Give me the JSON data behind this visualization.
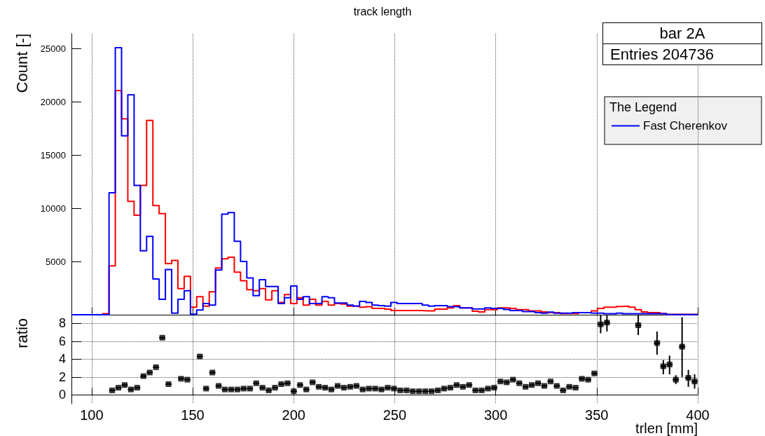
{
  "chart_data": [
    {
      "type": "histogram",
      "title": "track length",
      "ylabel": "Count [-]",
      "legend_title": "The Legend",
      "annotations": [
        "bar 2A",
        "Entries 204736"
      ],
      "bins": [
        90,
        93.1,
        96.2,
        99.3,
        102.4,
        105.5,
        108.6,
        111.7,
        114.8,
        117.9,
        121,
        124.1,
        127.2,
        130.3,
        133.4,
        136.5,
        139.6,
        142.7,
        145.8,
        148.9,
        152,
        155.1,
        158.2,
        161.3,
        164.4,
        167.5,
        170.6,
        173.7,
        176.8,
        179.9,
        183,
        186.1,
        189.2,
        192.3,
        195.4,
        198.5,
        201.6,
        204.7,
        207.8,
        210.9,
        214,
        217.1,
        220.2,
        223.3,
        226.4,
        229.5,
        232.6,
        235.7,
        238.8,
        241.9,
        245,
        248.1,
        251.2,
        254.3,
        257.4,
        260.5,
        263.6,
        266.7,
        269.8,
        272.9,
        276,
        279.1,
        282.2,
        285.3,
        288.4,
        291.5,
        294.6,
        297.7,
        300.8,
        303.9,
        307,
        310.1,
        313.2,
        316.3,
        319.4,
        322.5,
        325.6,
        328.7,
        331.8,
        334.9,
        338,
        341.1,
        344.2,
        347.3,
        350.4,
        353.5,
        356.6,
        359.7,
        362.8,
        365.9,
        369,
        372.1,
        375.2,
        378.3,
        381.4,
        384.5,
        387.6,
        390.7,
        393.8,
        396.9,
        400
      ],
      "series": [
        {
          "color": "#ff0000",
          "values": [
            0,
            0,
            0,
            0,
            0,
            100,
            4600,
            21050,
            18400,
            10650,
            9350,
            12150,
            18250,
            10250,
            9500,
            4800,
            5100,
            2450,
            3600,
            700,
            1700,
            800,
            2150,
            4400,
            5250,
            5400,
            4000,
            3200,
            2350,
            2250,
            2450,
            1400,
            2250,
            1150,
            1900,
            1050,
            1600,
            900,
            1450,
            900,
            1250,
            900,
            1050,
            1000,
            800,
            800,
            700,
            750,
            600,
            600,
            520,
            400,
            400,
            400,
            400,
            400,
            370,
            370,
            520,
            520,
            650,
            850,
            650,
            650,
            330,
            260,
            480,
            480,
            650,
            650,
            600,
            480,
            480,
            370,
            370,
            260,
            200,
            200,
            110,
            110,
            110,
            200,
            200,
            370,
            600,
            700,
            700,
            770,
            810,
            700,
            480,
            260,
            200,
            200,
            110,
            40,
            40,
            40,
            40,
            40
          ]
        },
        {
          "name": "Fast Cherenkov",
          "color": "#0000ff",
          "values": [
            0,
            0,
            0,
            0,
            0,
            0,
            11450,
            25090,
            16800,
            20650,
            12150,
            6000,
            7350,
            3350,
            1450,
            4250,
            150,
            1450,
            2250,
            50,
            450,
            1050,
            900,
            4200,
            9450,
            9600,
            6900,
            5000,
            3450,
            1800,
            3300,
            2650,
            2650,
            1050,
            1600,
            2700,
            1450,
            1700,
            1050,
            1050,
            1700,
            1600,
            1100,
            1100,
            900,
            800,
            1250,
            1150,
            900,
            850,
            800,
            1150,
            1050,
            1050,
            1050,
            1050,
            900,
            800,
            850,
            850,
            750,
            750,
            650,
            650,
            550,
            550,
            650,
            600,
            600,
            500,
            400,
            400,
            300,
            300,
            200,
            150,
            250,
            150,
            150,
            150,
            200,
            200,
            200,
            150,
            150,
            100,
            100,
            150,
            100,
            100,
            100,
            100,
            100,
            100,
            100,
            20,
            20,
            20,
            20,
            20
          ]
        }
      ],
      "xlim": [
        90,
        400
      ],
      "xticks": [
        100,
        150,
        200,
        250,
        300,
        350,
        400
      ],
      "ylim": [
        0,
        26400
      ],
      "yticks": [
        5000,
        10000,
        15000,
        20000,
        25000
      ],
      "tick_labels": "y",
      "grid": "x",
      "legend": "top right"
    },
    {
      "type": "scatter",
      "ylabel": "ratio",
      "xlabel": "trlen [mm]",
      "color": "#000000",
      "marker": "square",
      "x": [
        110.15,
        113.25,
        116.35,
        119.45,
        122.55,
        125.65,
        128.75,
        131.85,
        134.95,
        138.05,
        144.25,
        147.35,
        153.55,
        156.65,
        159.75,
        162.85,
        165.95,
        169.05,
        172.15,
        175.25,
        178.35,
        181.45,
        184.55,
        187.65,
        190.75,
        193.85,
        196.95,
        200.05,
        203.15,
        206.25,
        209.35,
        212.45,
        215.55,
        218.65,
        221.75,
        224.85,
        227.95,
        231.05,
        234.15,
        237.25,
        240.35,
        243.45,
        246.55,
        249.65,
        252.75,
        255.85,
        258.95,
        262.05,
        265.15,
        268.25,
        271.35,
        274.45,
        277.55,
        280.65,
        283.75,
        286.85,
        289.95,
        293.05,
        296.15,
        299.25,
        302.35,
        305.45,
        308.55,
        311.65,
        314.75,
        317.85,
        320.95,
        324.05,
        327.15,
        330.25,
        333.35,
        336.45,
        339.55,
        342.65,
        345.75,
        348.85,
        351.95,
        355.05,
        370.55,
        379.85,
        382.95,
        386.05,
        389.15,
        392.25,
        395.35,
        398.45
      ],
      "values": [
        0.5,
        0.8,
        1.1,
        0.6,
        0.8,
        2.1,
        2.5,
        3.1,
        6.4,
        1.2,
        1.8,
        1.7,
        4.3,
        0.7,
        2.5,
        1.0,
        0.6,
        0.6,
        0.6,
        0.7,
        0.7,
        1.3,
        0.8,
        0.5,
        0.8,
        1.2,
        1.3,
        0.4,
        1.1,
        0.6,
        1.4,
        0.9,
        0.8,
        0.6,
        1.0,
        0.8,
        0.9,
        1.0,
        0.6,
        0.7,
        0.7,
        0.6,
        0.8,
        0.7,
        0.5,
        0.5,
        0.4,
        0.4,
        0.4,
        0.4,
        0.5,
        0.7,
        0.8,
        1.1,
        0.9,
        1.1,
        0.5,
        0.5,
        0.7,
        0.8,
        1.5,
        1.4,
        1.7,
        1.3,
        0.9,
        1.1,
        1.3,
        1.0,
        1.5,
        1.0,
        0.5,
        0.9,
        0.8,
        1.8,
        1.7,
        2.4,
        7.9,
        8.1,
        7.8,
        5.8,
        3.2,
        3.4,
        1.7,
        5.4,
        1.9,
        1.5
      ],
      "errors": [
        null,
        null,
        null,
        null,
        null,
        null,
        null,
        null,
        null,
        null,
        null,
        null,
        null,
        null,
        null,
        null,
        null,
        null,
        null,
        null,
        null,
        null,
        null,
        null,
        null,
        null,
        null,
        null,
        null,
        null,
        null,
        null,
        null,
        null,
        null,
        null,
        null,
        null,
        null,
        null,
        null,
        null,
        null,
        null,
        null,
        null,
        null,
        null,
        null,
        null,
        null,
        null,
        null,
        null,
        null,
        null,
        null,
        null,
        null,
        null,
        null,
        null,
        null,
        null,
        null,
        null,
        null,
        null,
        null,
        null,
        null,
        null,
        null,
        null,
        null,
        null,
        [
          6.9,
          8.9
        ],
        [
          7.1,
          8.9
        ],
        [
          6.7,
          8.9
        ],
        [
          4.5,
          7.1
        ],
        [
          2.3,
          3.9
        ],
        [
          2.3,
          4.4
        ],
        [
          1.2,
          2.2
        ],
        [
          2.0,
          8.7
        ],
        [
          0.9,
          2.8
        ],
        [
          0.7,
          2.3
        ]
      ],
      "xerrors": [
        1.55,
        1.55,
        1.55,
        1.55,
        1.55,
        1.55,
        1.55,
        1.55,
        1.55,
        1.55,
        1.55,
        1.55,
        1.55,
        1.55,
        1.55,
        1.55,
        1.55,
        1.55,
        1.55,
        1.55,
        1.55,
        1.55,
        1.55,
        1.55,
        1.55,
        1.55,
        1.55,
        1.55,
        1.55,
        1.55,
        1.55,
        1.55,
        1.55,
        1.55,
        1.55,
        1.55,
        1.55,
        1.55,
        1.55,
        1.55,
        1.55,
        1.55,
        1.55,
        1.55,
        1.55,
        1.55,
        1.55,
        1.55,
        1.55,
        1.55,
        1.55,
        1.55,
        1.55,
        1.55,
        1.55,
        1.55,
        1.55,
        1.55,
        1.55,
        1.55,
        1.55,
        1.55,
        1.55,
        1.55,
        1.55,
        1.55,
        1.55,
        1.55,
        1.55,
        1.55,
        1.55,
        1.55,
        1.55,
        1.55,
        1.55,
        1.55,
        1.55,
        1.55,
        1.55,
        1.55,
        1.55,
        1.55,
        1.55,
        1.55,
        1.55,
        1.55
      ],
      "xlim": [
        90,
        400
      ],
      "xticks": [
        100,
        150,
        200,
        250,
        300,
        350,
        400
      ],
      "ylim": [
        -1,
        8.9
      ],
      "yticks": [
        0,
        2,
        4,
        6,
        8
      ],
      "grid": true
    }
  ]
}
